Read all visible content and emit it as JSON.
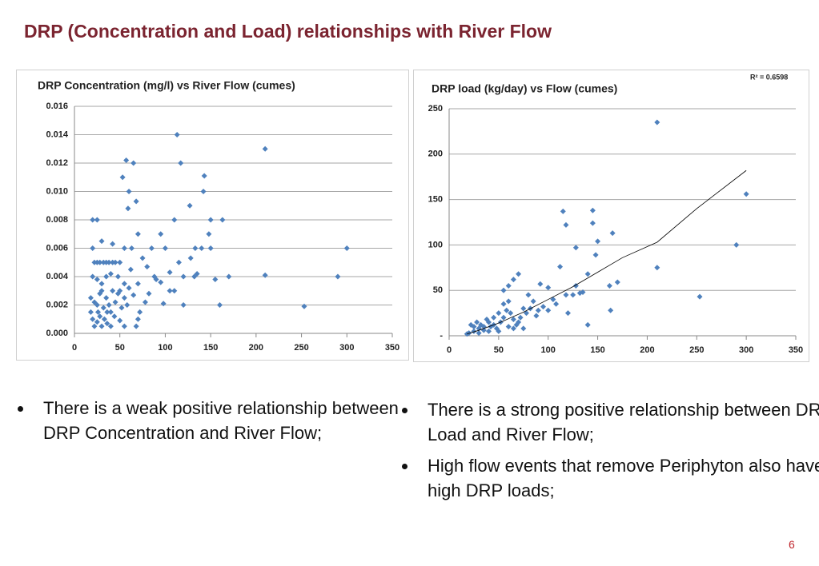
{
  "title": "DRP (Concentration and Load) relationships with River Flow",
  "chart_data": [
    {
      "type": "scatter",
      "title": "DRP Concentration (mg/l) vs River Flow (cumes)",
      "xlim": [
        0,
        350
      ],
      "xticks": [
        0,
        50,
        100,
        150,
        200,
        250,
        300,
        350
      ],
      "ylim": [
        0,
        0.016
      ],
      "yticks": [
        {
          "value": 0,
          "label": "0.000"
        },
        {
          "value": 0.002,
          "label": "0.002"
        },
        {
          "value": 0.004,
          "label": "0.004"
        },
        {
          "value": 0.006,
          "label": "0.006"
        },
        {
          "value": 0.008,
          "label": "0.008"
        },
        {
          "value": 0.01,
          "label": "0.010"
        },
        {
          "value": 0.012,
          "label": "0.012"
        },
        {
          "value": 0.014,
          "label": "0.014"
        },
        {
          "value": 0.016,
          "label": "0.016"
        }
      ],
      "grid": true,
      "series": [
        {
          "color": "#4f81bd",
          "x": [
            20,
            25,
            57,
            65,
            113,
            117,
            210,
            53,
            60,
            68,
            59,
            143,
            142,
            127,
            110,
            150,
            163,
            70,
            95,
            148,
            300,
            20,
            30,
            42,
            55,
            63,
            85,
            100,
            133,
            140,
            150,
            22,
            25,
            28,
            32,
            35,
            38,
            42,
            45,
            50,
            115,
            128,
            75,
            62,
            80,
            105,
            120,
            132,
            135,
            155,
            170,
            210,
            290,
            20,
            25,
            30,
            35,
            40,
            48,
            55,
            60,
            70,
            88,
            90,
            95,
            105,
            110,
            18,
            22,
            25,
            28,
            30,
            32,
            35,
            38,
            40,
            42,
            45,
            48,
            50,
            52,
            55,
            58,
            65,
            72,
            78,
            82,
            98,
            120,
            160,
            253,
            20,
            22,
            25,
            28,
            30,
            33,
            36,
            40,
            44,
            50,
            55,
            68,
            70,
            18,
            26,
            36
          ],
          "values": [
            0.008,
            0.008,
            0.0122,
            0.012,
            0.014,
            0.012,
            0.013,
            0.011,
            0.01,
            0.0093,
            0.0088,
            0.0111,
            0.01,
            0.009,
            0.008,
            0.008,
            0.008,
            0.007,
            0.007,
            0.007,
            0.006,
            0.006,
            0.0065,
            0.0063,
            0.006,
            0.006,
            0.006,
            0.006,
            0.006,
            0.006,
            0.006,
            0.005,
            0.005,
            0.005,
            0.005,
            0.005,
            0.005,
            0.005,
            0.005,
            0.005,
            0.005,
            0.0053,
            0.0053,
            0.0045,
            0.0047,
            0.0043,
            0.004,
            0.004,
            0.0042,
            0.0038,
            0.004,
            0.0041,
            0.004,
            0.004,
            0.0038,
            0.0035,
            0.004,
            0.0042,
            0.004,
            0.0035,
            0.0032,
            0.0035,
            0.004,
            0.0038,
            0.0036,
            0.003,
            0.003,
            0.0025,
            0.0022,
            0.002,
            0.0028,
            0.003,
            0.0018,
            0.0025,
            0.002,
            0.0015,
            0.003,
            0.0022,
            0.0028,
            0.003,
            0.0018,
            0.0025,
            0.002,
            0.0027,
            0.0015,
            0.0022,
            0.0028,
            0.0021,
            0.002,
            0.002,
            0.0019,
            0.001,
            0.0005,
            0.0008,
            0.0012,
            0.0005,
            0.001,
            0.0007,
            0.0005,
            0.0012,
            0.0009,
            0.0005,
            0.0005,
            0.001,
            0.0015,
            0.0015,
            0.0015
          ]
        }
      ]
    },
    {
      "type": "scatter",
      "title": "DRP load (kg/day) vs Flow (cumes)",
      "annotation": "R² = 0.6598",
      "xlim": [
        0,
        350
      ],
      "xticks": [
        0,
        50,
        100,
        150,
        200,
        250,
        300,
        350
      ],
      "ylim": [
        0,
        250
      ],
      "yticks": [
        {
          "value": 0,
          "label": "-"
        },
        50,
        100,
        150,
        200,
        250
      ],
      "grid": true,
      "series": [
        {
          "color": "#4f81bd",
          "x": [
            210,
            300,
            290,
            210,
            253,
            145,
            115,
            118,
            145,
            150,
            165,
            148,
            128,
            112,
            170,
            162,
            163,
            140,
            125,
            132,
            135,
            100,
            92,
            105,
            108,
            80,
            85,
            70,
            65,
            60,
            55,
            75,
            90,
            95,
            120,
            140,
            128,
            118,
            50,
            45,
            40,
            35,
            30,
            25,
            20,
            18,
            22,
            28,
            32,
            38,
            42,
            48,
            52,
            55,
            58,
            62,
            65,
            68,
            72,
            78,
            82,
            88,
            40,
            30,
            35,
            25,
            45,
            50,
            60,
            65,
            70,
            75,
            55,
            60,
            100
          ],
          "values": [
            235,
            156,
            100,
            75,
            43,
            138,
            137,
            122,
            124,
            104,
            113,
            89,
            97,
            76,
            59,
            55,
            28,
            12,
            45,
            47,
            48,
            53,
            57,
            40,
            35,
            45,
            38,
            68,
            62,
            55,
            50,
            30,
            28,
            32,
            25,
            68,
            55,
            45,
            25,
            20,
            15,
            10,
            8,
            5,
            3,
            2,
            12,
            15,
            12,
            18,
            10,
            8,
            15,
            20,
            28,
            25,
            18,
            12,
            20,
            25,
            30,
            22,
            5,
            3,
            6,
            10,
            12,
            5,
            10,
            8,
            15,
            8,
            35,
            38,
            28
          ]
        }
      ],
      "trendline": {
        "color": "#000000",
        "x": [
          18,
          30,
          50,
          75,
          100,
          125,
          150,
          175,
          210,
          250,
          300
        ],
        "y": [
          2,
          6,
          14,
          26,
          40,
          54,
          70,
          86,
          103,
          140,
          182
        ]
      }
    }
  ],
  "bullets_left": [
    "There is a weak positive relationship between DRP Concentration and River Flow;"
  ],
  "bullets_right": [
    "There is a strong positive relationship between DRP Load and River Flow;",
    "High flow events that remove Periphyton also have high DRP loads;"
  ],
  "page_number": "6"
}
